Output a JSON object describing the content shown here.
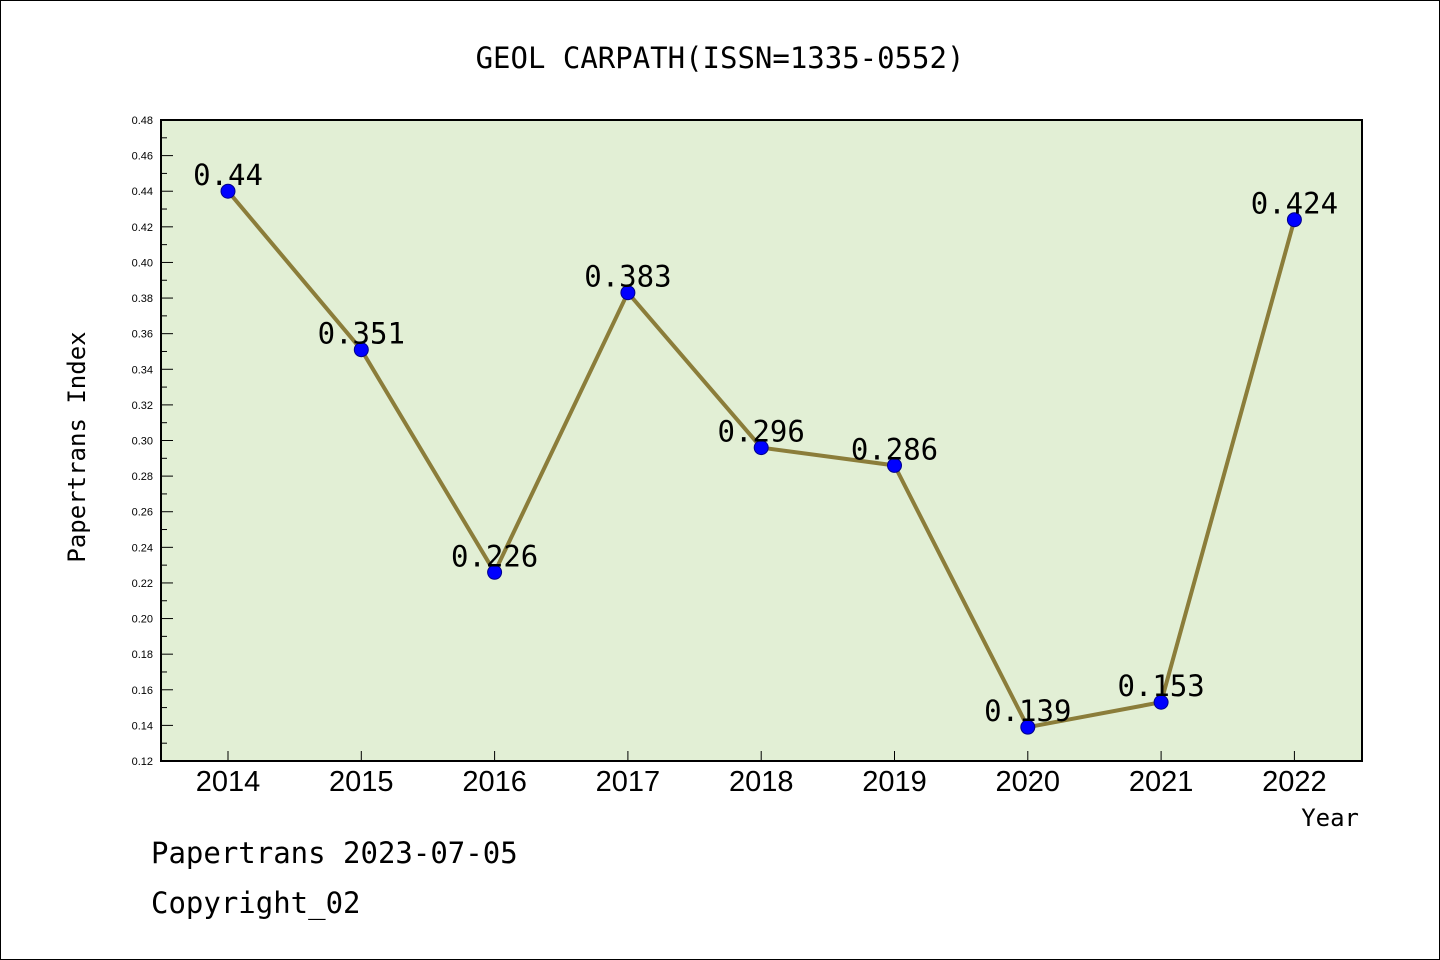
{
  "chart_data": {
    "type": "line",
    "title": "GEOL CARPATH(ISSN=1335-0552)",
    "xlabel": "Year",
    "ylabel": "Papertrans Index",
    "categories": [
      "2014",
      "2015",
      "2016",
      "2017",
      "2018",
      "2019",
      "2020",
      "2021",
      "2022"
    ],
    "values": [
      0.44,
      0.351,
      0.226,
      0.383,
      0.296,
      0.286,
      0.139,
      0.153,
      0.424
    ],
    "data_labels": [
      "0.44",
      "0.351",
      "0.226",
      "0.383",
      "0.296",
      "0.286",
      "0.139",
      "0.153",
      "0.424"
    ],
    "ylim": [
      0.12,
      0.48
    ],
    "y_ticks": [
      "0.12",
      "0.14",
      "0.16",
      "0.18",
      "0.20",
      "0.22",
      "0.24",
      "0.26",
      "0.28",
      "0.30",
      "0.32",
      "0.34",
      "0.36",
      "0.38",
      "0.40",
      "0.42",
      "0.44",
      "0.46",
      "0.48"
    ],
    "grid": false,
    "legend": "none",
    "colors": {
      "plot_background": "#e2efd5",
      "line": "#8b7d3a",
      "marker": "#0000ff"
    }
  },
  "footer": {
    "line1": "Papertrans 2023-07-05",
    "line2": "Copyright_02"
  }
}
